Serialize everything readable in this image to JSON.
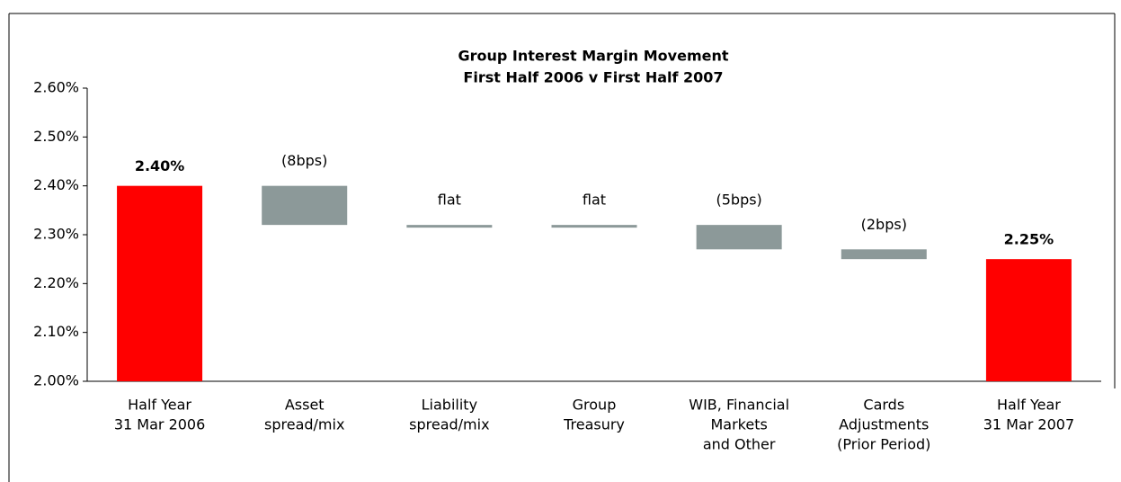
{
  "chart_data": {
    "type": "waterfall",
    "title": [
      "Group Interest Margin Movement",
      "First Half 2006 v First Half 2007"
    ],
    "categories": [
      [
        "Half Year",
        "31 Mar 2006"
      ],
      [
        "Asset",
        "spread/mix"
      ],
      [
        "Liability",
        "spread/mix"
      ],
      [
        "Group",
        "Treasury"
      ],
      [
        "WIB, Financial",
        "Markets",
        "and Other"
      ],
      [
        "Cards",
        "Adjustments",
        "(Prior Period)"
      ],
      [
        "Half Year",
        "31 Mar 2007"
      ]
    ],
    "values": [
      2.4,
      -0.08,
      0,
      0,
      -0.05,
      -0.02,
      2.25
    ],
    "value_labels": [
      "2.40%",
      "(8bps)",
      "flat",
      "flat",
      "(5bps)",
      "(2bps)",
      "2.25%"
    ],
    "totals": [
      true,
      false,
      false,
      false,
      false,
      false,
      true
    ],
    "total_color": "#ff0000",
    "change_color": "#8c9999",
    "ylim": [
      2.0,
      2.6
    ],
    "yticks": [
      {
        "value": 2.0,
        "label": "2.00%"
      },
      {
        "value": 2.1,
        "label": "2.10%"
      },
      {
        "value": 2.2,
        "label": "2.20%"
      },
      {
        "value": 2.3,
        "label": "2.30%"
      },
      {
        "value": 2.4,
        "label": "2.40%"
      },
      {
        "value": 2.5,
        "label": "2.50%"
      },
      {
        "value": 2.6,
        "label": "2.60%"
      }
    ]
  }
}
